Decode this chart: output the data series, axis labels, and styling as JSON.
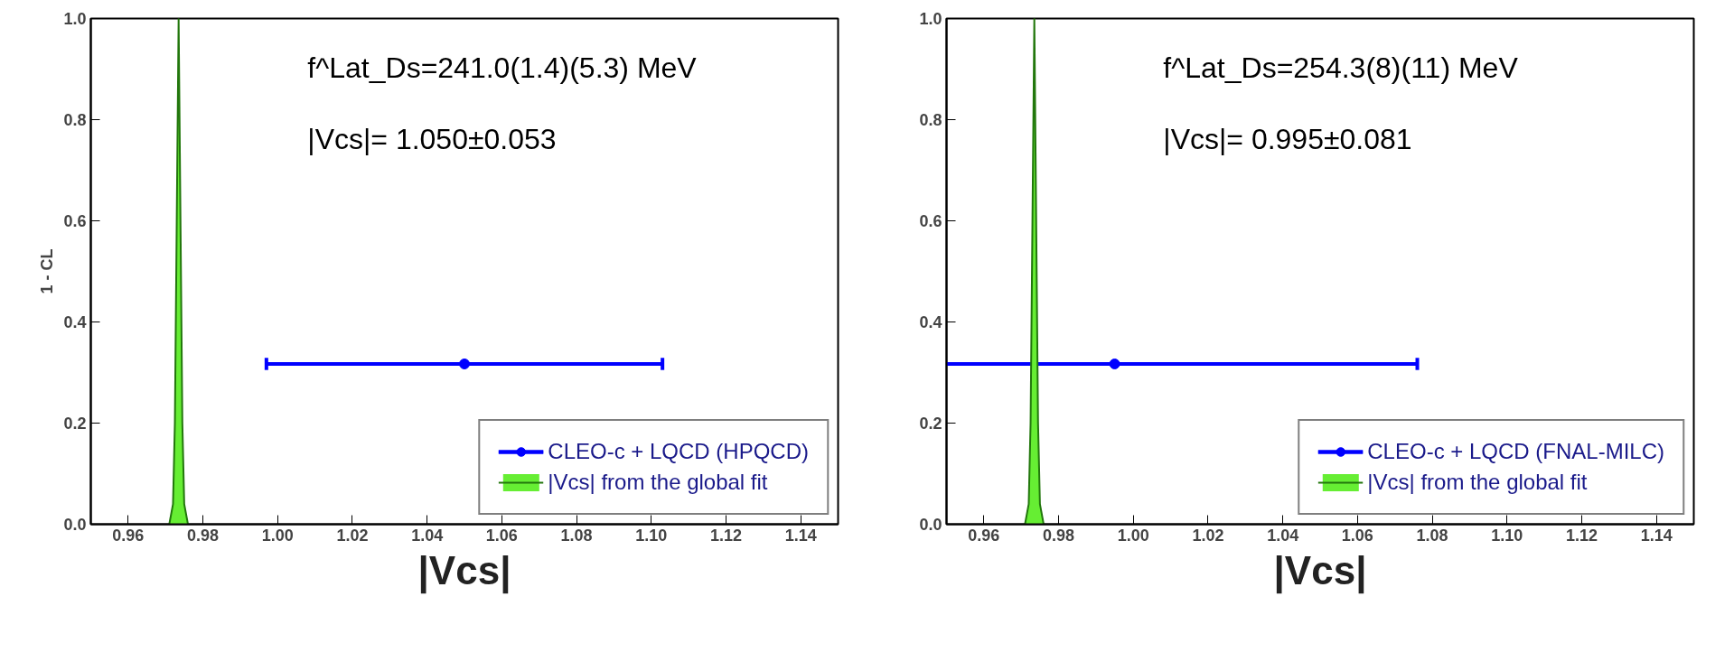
{
  "chart_data": [
    {
      "type": "scatter",
      "xlabel": "|Vcs|",
      "ylabel": "1 - CL",
      "xlim": [
        0.95,
        1.15
      ],
      "xticks": [
        {
          "value": 0.96,
          "label": "0.96"
        },
        {
          "value": 0.98,
          "label": "0.98"
        },
        {
          "value": 1.0,
          "label": "1.00"
        },
        {
          "value": 1.02,
          "label": "1.02"
        },
        {
          "value": 1.04,
          "label": "1.04"
        },
        {
          "value": 1.06,
          "label": "1.06"
        },
        {
          "value": 1.08,
          "label": "1.08"
        },
        {
          "value": 1.1,
          "label": "1.10"
        },
        {
          "value": 1.12,
          "label": "1.12"
        },
        {
          "value": 1.14,
          "label": "1.14"
        }
      ],
      "ylim": [
        0,
        1
      ],
      "yticks": [
        {
          "value": 0,
          "label": "0.0"
        },
        {
          "value": 0.2,
          "label": "0.2"
        },
        {
          "value": 0.4,
          "label": "0.4"
        },
        {
          "value": 0.6,
          "label": "0.6"
        },
        {
          "value": 0.8,
          "label": "0.8"
        },
        {
          "value": 1,
          "label": "1.0"
        }
      ],
      "legend": "bottom right",
      "grid": false,
      "annotations": [
        "f^Lat_Ds=241.0(1.4)(5.3) MeV",
        "|Vcs|= 1.050±0.053"
      ],
      "series": [
        {
          "name": "CLEO-c + LQCD (HPQCD)",
          "color": "#0000ff",
          "x": [
            1.05
          ],
          "values": [
            0.317
          ],
          "xerrors": [
            0.053
          ]
        },
        {
          "name": "|Vcs| from the global fit",
          "type": "area",
          "color": "#66ee33",
          "x": [
            0.971,
            0.972,
            0.9725,
            0.973,
            0.9735,
            0.974,
            0.9745,
            0.975,
            0.976
          ],
          "values": [
            0,
            0.04,
            0.2,
            0.6,
            1.0,
            0.6,
            0.2,
            0.04,
            0
          ]
        }
      ]
    },
    {
      "type": "scatter",
      "xlabel": "|Vcs|",
      "xlim": [
        0.95,
        1.15
      ],
      "xticks": [
        {
          "value": 0.96,
          "label": "0.96"
        },
        {
          "value": 0.98,
          "label": "0.98"
        },
        {
          "value": 1.0,
          "label": "1.00"
        },
        {
          "value": 1.02,
          "label": "1.02"
        },
        {
          "value": 1.04,
          "label": "1.04"
        },
        {
          "value": 1.06,
          "label": "1.06"
        },
        {
          "value": 1.08,
          "label": "1.08"
        },
        {
          "value": 1.1,
          "label": "1.10"
        },
        {
          "value": 1.12,
          "label": "1.12"
        },
        {
          "value": 1.14,
          "label": "1.14"
        }
      ],
      "ylim": [
        0,
        1
      ],
      "yticks": [
        {
          "value": 0,
          "label": "0.0"
        },
        {
          "value": 0.2,
          "label": "0.2"
        },
        {
          "value": 0.4,
          "label": "0.4"
        },
        {
          "value": 0.6,
          "label": "0.6"
        },
        {
          "value": 0.8,
          "label": "0.8"
        },
        {
          "value": 1,
          "label": "1.0"
        }
      ],
      "legend": "bottom right",
      "grid": false,
      "annotations": [
        "f^Lat_Ds=254.3(8)(11) MeV",
        "|Vcs|= 0.995±0.081"
      ],
      "series": [
        {
          "name": "CLEO-c + LQCD (FNAL-MILC)",
          "color": "#0000ff",
          "x": [
            0.995
          ],
          "values": [
            0.317
          ],
          "xerrors": [
            0.081
          ]
        },
        {
          "name": "|Vcs| from the global fit",
          "type": "area",
          "color": "#66ee33",
          "x": [
            0.971,
            0.972,
            0.9725,
            0.973,
            0.9735,
            0.974,
            0.9745,
            0.975,
            0.976
          ],
          "values": [
            0,
            0.04,
            0.2,
            0.6,
            1.0,
            0.6,
            0.2,
            0.04,
            0
          ]
        }
      ]
    }
  ]
}
